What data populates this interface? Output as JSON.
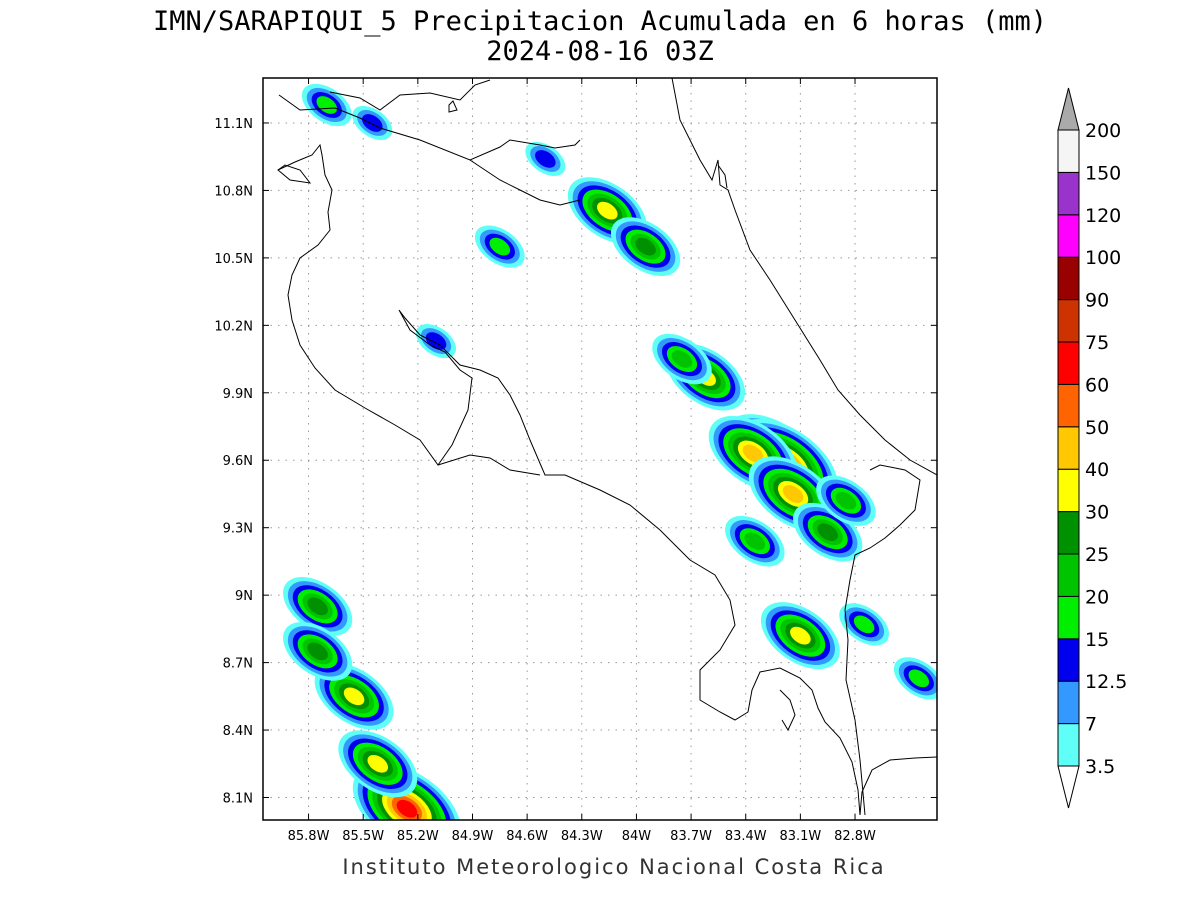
{
  "title": {
    "line1": "IMN/SARAPIQUI_5 Precipitacion Acumulada en 6 horas (mm)",
    "line2": "2024-08-16 03Z"
  },
  "footer": "Instituto Meteorologico Nacional Costa Rica",
  "map": {
    "lon_range": [
      -86.05,
      -82.35
    ],
    "lat_range": [
      8.0,
      11.3
    ],
    "lon_ticks": [
      {
        "value": -85.8,
        "label": "85.8W"
      },
      {
        "value": -85.5,
        "label": "85.5W"
      },
      {
        "value": -85.2,
        "label": "85.2W"
      },
      {
        "value": -84.9,
        "label": "84.9W"
      },
      {
        "value": -84.6,
        "label": "84.6W"
      },
      {
        "value": -84.3,
        "label": "84.3W"
      },
      {
        "value": -84.0,
        "label": "84W"
      },
      {
        "value": -83.7,
        "label": "83.7W"
      },
      {
        "value": -83.4,
        "label": "83.4W"
      },
      {
        "value": -83.1,
        "label": "83.1W"
      },
      {
        "value": -82.8,
        "label": "82.8W"
      }
    ],
    "lat_ticks": [
      {
        "value": 8.1,
        "label": "8.1N"
      },
      {
        "value": 8.4,
        "label": "8.4N"
      },
      {
        "value": 8.7,
        "label": "8.7N"
      },
      {
        "value": 9.0,
        "label": "9N"
      },
      {
        "value": 9.3,
        "label": "9.3N"
      },
      {
        "value": 9.6,
        "label": "9.6N"
      },
      {
        "value": 9.9,
        "label": "9.9N"
      },
      {
        "value": 10.2,
        "label": "10.2N"
      },
      {
        "value": 10.5,
        "label": "10.5N"
      },
      {
        "value": 10.8,
        "label": "10.8N"
      },
      {
        "value": 11.1,
        "label": "11.1N"
      }
    ],
    "grid": true,
    "precip_cells": [
      {
        "lon": -85.26,
        "lat": 8.05,
        "mm": 60
      },
      {
        "lon": -83.25,
        "lat": 9.62,
        "mm": 50
      },
      {
        "lon": -83.19,
        "lat": 9.58,
        "mm": 60
      },
      {
        "lon": -83.36,
        "lat": 9.63,
        "mm": 40
      },
      {
        "lon": -83.62,
        "lat": 9.97,
        "mm": 30
      },
      {
        "lon": -84.16,
        "lat": 10.71,
        "mm": 30
      },
      {
        "lon": -85.55,
        "lat": 8.55,
        "mm": 30
      },
      {
        "lon": -85.42,
        "lat": 8.25,
        "mm": 30
      },
      {
        "lon": -83.14,
        "lat": 9.45,
        "mm": 40
      },
      {
        "lon": -83.1,
        "lat": 8.82,
        "mm": 30
      },
      {
        "lon": -83.95,
        "lat": 10.55,
        "mm": 25
      },
      {
        "lon": -82.95,
        "lat": 9.28,
        "mm": 25
      },
      {
        "lon": -85.75,
        "lat": 8.95,
        "mm": 25
      },
      {
        "lon": -85.75,
        "lat": 8.75,
        "mm": 25
      },
      {
        "lon": -84.75,
        "lat": 10.55,
        "mm": 15
      },
      {
        "lon": -85.7,
        "lat": 11.18,
        "mm": 15
      },
      {
        "lon": -85.45,
        "lat": 11.1,
        "mm": 12.5
      },
      {
        "lon": -84.5,
        "lat": 10.94,
        "mm": 12.5
      },
      {
        "lon": -85.1,
        "lat": 10.13,
        "mm": 12.5
      },
      {
        "lon": -83.75,
        "lat": 10.05,
        "mm": 20
      },
      {
        "lon": -83.35,
        "lat": 9.24,
        "mm": 20
      },
      {
        "lon": -82.85,
        "lat": 9.42,
        "mm": 20
      },
      {
        "lon": -82.75,
        "lat": 8.87,
        "mm": 15
      },
      {
        "lon": -82.45,
        "lat": 8.63,
        "mm": 15
      }
    ]
  },
  "colorbar": {
    "levels": [
      "3.5",
      "7",
      "12.5",
      "15",
      "20",
      "25",
      "30",
      "40",
      "50",
      "60",
      "75",
      "90",
      "100",
      "120",
      "150",
      "200"
    ],
    "colors": [
      "#ffffff",
      "#5ffff7",
      "#3399ff",
      "#0000ee",
      "#00ee00",
      "#00c400",
      "#009100",
      "#ffff00",
      "#ffc800",
      "#ff6400",
      "#ff0000",
      "#cc3300",
      "#990000",
      "#ff00ff",
      "#9933cc",
      "#f5f5f5",
      "#aaaaaa"
    ]
  }
}
